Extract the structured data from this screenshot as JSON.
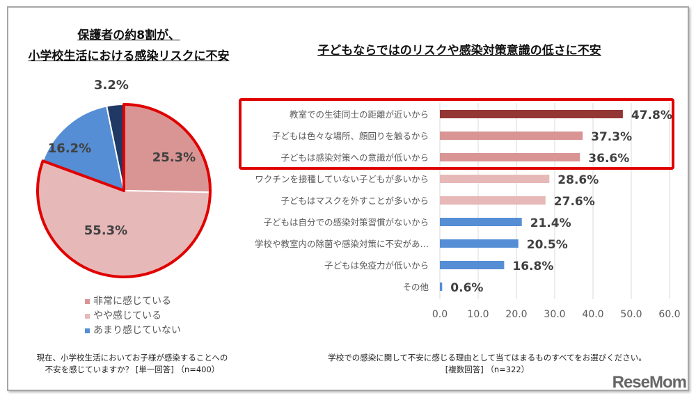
{
  "left_title": [
    "保護者の約8割が、",
    "小学校生活における感染リスクに不安"
  ],
  "right_title": "子どもならではのリスクや感染対策意識の低さに不安",
  "chart_data": [
    {
      "type": "pie",
      "start": "top, clockwise",
      "slices": [
        {
          "name": "非常に感じている",
          "value": 25.3,
          "label": "25.3%",
          "color": "#D99594"
        },
        {
          "name": "やや感じている",
          "value": 55.3,
          "label": "55.3%",
          "color": "#E6B9B8"
        },
        {
          "name": "あまり感じていない",
          "value": 16.2,
          "label": "16.2%",
          "color": "#558ED5"
        },
        {
          "name": "",
          "value": 3.2,
          "label": "3.2%",
          "color": "#1F3864"
        }
      ],
      "legend": [
        "非常に感じている",
        "やや感じている",
        "あまり感じていない"
      ],
      "legend_placement": "bottom",
      "highlight_color": "#E00000",
      "highlighted_slices": [
        0,
        1
      ],
      "note": [
        "現在、小学校生活においてお子様が感染することへの",
        "不安を感じていますか？ [単一回答] （n=400）"
      ]
    },
    {
      "type": "bar",
      "orientation": "horizontal",
      "categories": [
        "教室での生徒同士の距離が近いから",
        "子どもは色々な場所、顔回りを触るから",
        "子どもは感染対策への意識が低いから",
        "ワクチンを接種していない子どもが多いから",
        "子どもはマスクを外すことが多いから",
        "子どもは自分での感染対策習慣がないから",
        "学校や教室内の除菌や感染対策に不安があ…",
        "子どもは免疫力が低いから",
        "その他"
      ],
      "values": [
        47.8,
        37.3,
        36.6,
        28.6,
        27.6,
        21.4,
        20.5,
        16.8,
        0.6
      ],
      "data_labels": [
        "47.8%",
        "37.3%",
        "36.6%",
        "28.6%",
        "27.6%",
        "21.4%",
        "20.5%",
        "16.8%",
        "0.6%"
      ],
      "colors": [
        "#943634",
        "#D99594",
        "#D99594",
        "#E6B9B8",
        "#E6B9B8",
        "#558ED5",
        "#558ED5",
        "#558ED5",
        "#558ED5"
      ],
      "xlim": [
        0,
        60
      ],
      "xticks": [
        "0.0",
        "10.0",
        "20.0",
        "30.0",
        "40.0",
        "50.0",
        "60.0"
      ],
      "grid": "vertical",
      "highlight_box_rows": [
        0,
        1,
        2
      ],
      "highlight_color": "#E00000",
      "note": [
        "学校での感染に関して不安に感じる理由として当てはまるものすべてをお選びください。",
        "[複数回答] （n=322）"
      ]
    }
  ],
  "watermark": "ReseMom"
}
